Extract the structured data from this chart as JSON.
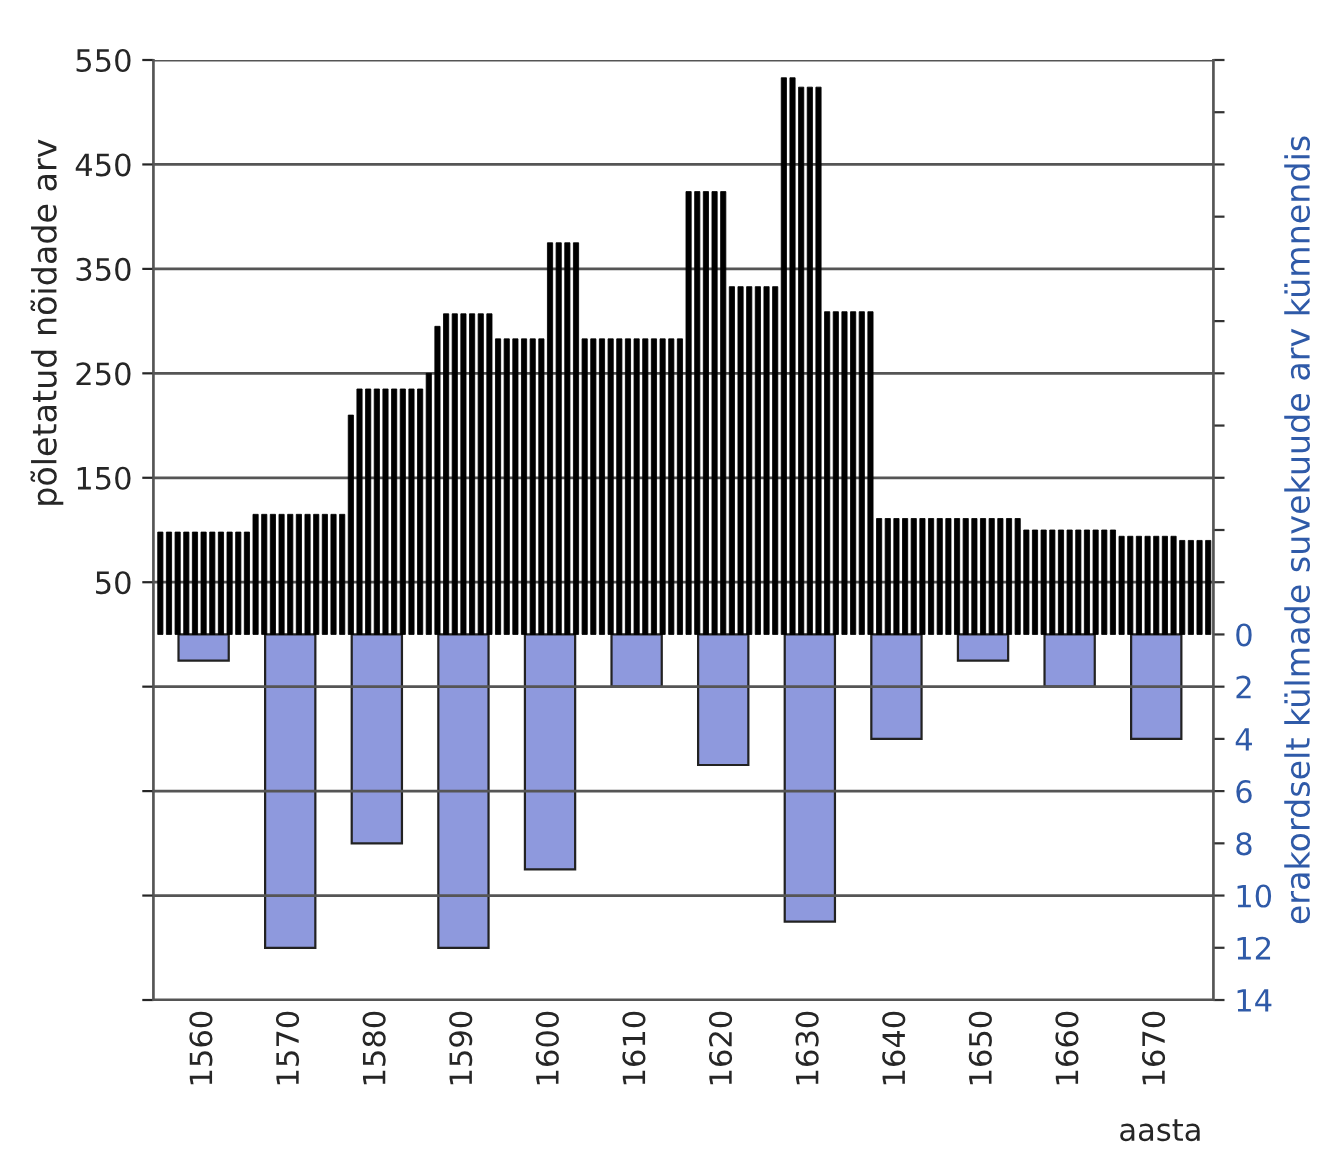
{
  "chart_data": {
    "type": "bar",
    "xlabel": "aasta",
    "ylabel": "põletatud nõidade arv",
    "y2label": "erakordselt külmade suvekuude arv kümnendis",
    "x": [
      1555,
      1556,
      1557,
      1558,
      1559,
      1560,
      1561,
      1562,
      1563,
      1564,
      1565,
      1566,
      1567,
      1568,
      1569,
      1570,
      1571,
      1572,
      1573,
      1574,
      1575,
      1576,
      1577,
      1578,
      1579,
      1580,
      1581,
      1582,
      1583,
      1584,
      1585,
      1586,
      1587,
      1588,
      1589,
      1590,
      1591,
      1592,
      1593,
      1594,
      1595,
      1596,
      1597,
      1598,
      1599,
      1600,
      1601,
      1602,
      1603,
      1604,
      1605,
      1606,
      1607,
      1608,
      1609,
      1610,
      1611,
      1612,
      1613,
      1614,
      1615,
      1616,
      1617,
      1618,
      1619,
      1620,
      1621,
      1622,
      1623,
      1624,
      1625,
      1626,
      1627,
      1628,
      1629,
      1630,
      1631,
      1632,
      1633,
      1634,
      1635,
      1636,
      1637,
      1638,
      1639,
      1640,
      1641,
      1642,
      1643,
      1644,
      1645,
      1646,
      1647,
      1648,
      1649,
      1650,
      1651,
      1652,
      1653,
      1654,
      1655,
      1656,
      1657,
      1658,
      1659,
      1660,
      1661,
      1662,
      1663,
      1664,
      1665,
      1666,
      1667,
      1668,
      1669,
      1670,
      1671,
      1672,
      1673,
      1674,
      1675,
      1676
    ],
    "series": [
      {
        "color": "#000000",
        "values": [
          98,
          98,
          98,
          98,
          98,
          98,
          98,
          98,
          98,
          98,
          98,
          115,
          115,
          115,
          115,
          115,
          115,
          115,
          115,
          115,
          115,
          115,
          210,
          235,
          235,
          235,
          235,
          235,
          235,
          235,
          235,
          250,
          295,
          307,
          307,
          307,
          307,
          307,
          307,
          283,
          283,
          283,
          283,
          283,
          283,
          375,
          375,
          375,
          375,
          283,
          283,
          283,
          283,
          283,
          283,
          283,
          283,
          283,
          283,
          283,
          283,
          424,
          424,
          424,
          424,
          424,
          333,
          333,
          333,
          333,
          333,
          333,
          533,
          533,
          524,
          524,
          524,
          309,
          309,
          309,
          309,
          309,
          309,
          111,
          111,
          111,
          111,
          111,
          111,
          111,
          111,
          111,
          111,
          111,
          111,
          111,
          111,
          111,
          111,
          111,
          100,
          100,
          100,
          100,
          100,
          100,
          100,
          100,
          100,
          100,
          100,
          94,
          94,
          94,
          94,
          94,
          94,
          94,
          90,
          90,
          90,
          90
        ]
      },
      {
        "color": "#8e99dd",
        "axis": "y2",
        "x": [
          1560,
          1570,
          1580,
          1590,
          1600,
          1610,
          1620,
          1630,
          1640,
          1650,
          1660,
          1670
        ],
        "values": [
          1,
          12,
          8,
          12,
          9,
          2,
          5,
          11,
          4,
          1,
          2,
          4
        ]
      }
    ],
    "xlim": [
      1554.2,
      1676.6
    ],
    "xticks": [
      1560,
      1570,
      1580,
      1590,
      1600,
      1610,
      1620,
      1630,
      1640,
      1650,
      1660,
      1670
    ],
    "ylim": [
      -350,
      550
    ],
    "yticks": [
      {
        "value": -350,
        "label": null
      },
      {
        "value": -250,
        "label": null
      },
      {
        "value": -150,
        "label": null
      },
      {
        "value": -50,
        "label": null
      },
      50,
      150,
      250,
      350,
      450,
      550
    ],
    "y2lim": [
      14,
      -22
    ],
    "y2ticks": [
      {
        "value": -22,
        "label": null
      },
      {
        "value": -20,
        "label": null
      },
      {
        "value": -18,
        "label": null
      },
      {
        "value": -16,
        "label": null
      },
      {
        "value": -14,
        "label": null
      },
      {
        "value": -12,
        "label": null
      },
      {
        "value": -10,
        "label": null
      },
      {
        "value": -8,
        "label": null
      },
      {
        "value": -6,
        "label": null
      },
      {
        "value": -4,
        "label": null
      },
      {
        "value": -2,
        "label": null
      },
      0,
      2,
      4,
      6,
      8,
      10,
      12,
      14
    ],
    "grid": "y",
    "legend": false
  }
}
